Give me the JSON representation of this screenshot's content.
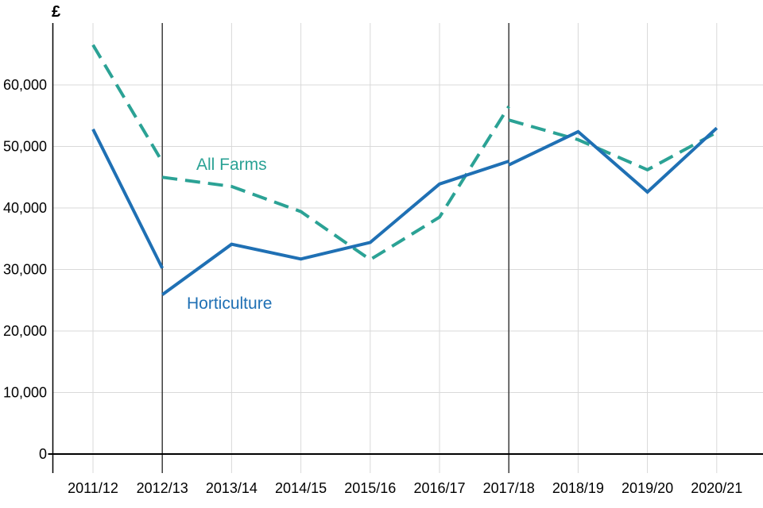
{
  "colors": {
    "background": "#ffffff",
    "grid": "#d9d9d9",
    "break_line": "#3d3d3d",
    "axis": "#000000",
    "tick_text": "#000000",
    "all_farms": "#2BA295",
    "horticulture": "#1F70B4"
  },
  "chart_data": {
    "type": "line",
    "title": "",
    "xlabel": "",
    "ylabel": "£",
    "ylim": [
      0,
      70000
    ],
    "grid": true,
    "legend_position": "inline-labels-on-lines",
    "categories": [
      "2011/12",
      "2012/13",
      "2013/14",
      "2014/15",
      "2015/16",
      "2016/17",
      "2017/18",
      "2018/19",
      "2019/20",
      "2020/21"
    ],
    "y_ticks": [
      {
        "value": 0,
        "label": "0"
      },
      {
        "value": 10000,
        "label": "10,000"
      },
      {
        "value": 20000,
        "label": "20,000"
      },
      {
        "value": 30000,
        "label": "30,000"
      },
      {
        "value": 40000,
        "label": "40,000"
      },
      {
        "value": 50000,
        "label": "50,000"
      },
      {
        "value": 60000,
        "label": "60,000"
      }
    ],
    "break_lines": [
      "2012/13",
      "2017/18"
    ],
    "series": [
      {
        "name": "All Farms",
        "color": "#2BA295",
        "line_style": "dashed",
        "segments": [
          {
            "years": [
              "2011/12",
              "2012/13"
            ],
            "values": [
              66500,
              47500
            ]
          },
          {
            "years": [
              "2012/13",
              "2013/14",
              "2014/15",
              "2015/16",
              "2016/17",
              "2017/18"
            ],
            "values": [
              45000,
              43500,
              39400,
              31600,
              38500,
              56500
            ]
          },
          {
            "years": [
              "2017/18",
              "2018/19",
              "2019/20",
              "2020/21"
            ],
            "values": [
              54300,
              51100,
              46200,
              52300
            ]
          }
        ]
      },
      {
        "name": "Horticulture",
        "color": "#1F70B4",
        "line_style": "solid",
        "segments": [
          {
            "years": [
              "2011/12",
              "2012/13"
            ],
            "values": [
              52800,
              30200
            ]
          },
          {
            "years": [
              "2012/13",
              "2013/14",
              "2014/15",
              "2015/16",
              "2016/17",
              "2017/18"
            ],
            "values": [
              25900,
              34100,
              31700,
              34400,
              43900,
              47600
            ]
          },
          {
            "years": [
              "2017/18",
              "2018/19",
              "2019/20",
              "2020/21"
            ],
            "values": [
              47000,
              52400,
              42600,
              53000
            ]
          }
        ]
      }
    ]
  }
}
